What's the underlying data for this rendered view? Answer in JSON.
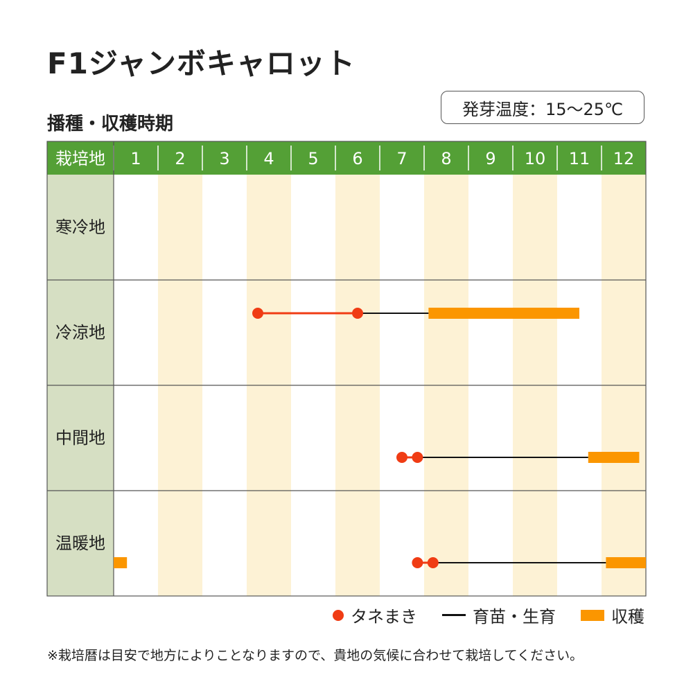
{
  "title": "F1ジャンボキャロット",
  "subtitle": "播種・収穫時期",
  "germination_temp": "発芽温度：15〜25℃",
  "legend": {
    "sowing": "タネまき",
    "growing": "育苗・生育",
    "harvest": "収穫"
  },
  "footnote": "※栽培暦は目安で地方によりことなりますので、貴地の気候に合わせて栽培してください。",
  "colors": {
    "header_green": "#54a036",
    "row_label_bg": "#d6dfc3",
    "stripe_cream": "#fdf2d5",
    "sowing_red": "#f03c14",
    "harvest_orange": "#fb9600",
    "grid_line": "#555555"
  },
  "chart_data": {
    "type": "gantt",
    "header_label": "栽培地",
    "months": [
      "1",
      "2",
      "3",
      "4",
      "5",
      "6",
      "7",
      "8",
      "9",
      "10",
      "11",
      "12"
    ],
    "regions": [
      {
        "name": "寒冷地",
        "sowing_points": [],
        "growing": [],
        "harvest": []
      },
      {
        "name": "冷涼地",
        "sowing_points": [
          4.25,
          6.5
        ],
        "growing": [
          [
            6.5,
            8.1
          ]
        ],
        "harvest": [
          [
            8.1,
            11.5
          ]
        ]
      },
      {
        "name": "中間地",
        "sowing_points": [
          7.5,
          7.85
        ],
        "growing": [
          [
            7.85,
            11.7
          ]
        ],
        "harvest": [
          [
            11.7,
            12.85
          ]
        ]
      },
      {
        "name": "温暖地",
        "sowing_points": [
          7.85,
          8.2
        ],
        "growing": [
          [
            8.2,
            12.1
          ]
        ],
        "harvest": [
          [
            1.0,
            1.3
          ],
          [
            12.1,
            13.0
          ]
        ]
      }
    ]
  }
}
